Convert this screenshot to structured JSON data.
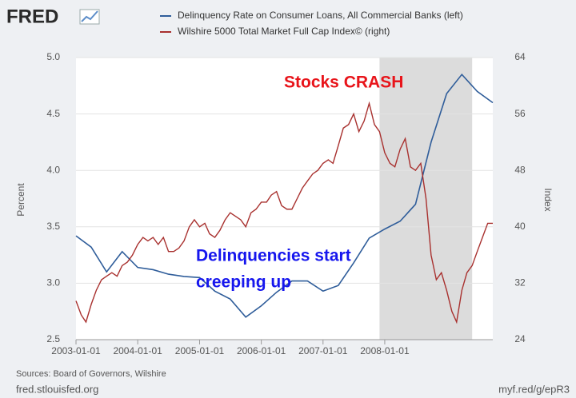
{
  "header": {
    "logo": "FRED"
  },
  "chart_data": {
    "type": "line",
    "series": [
      {
        "name": "Delinquency Rate on Consumer Loans, All Commercial Banks (left)",
        "color": "#2f5d9a",
        "axis": "y",
        "x": [
          "2003-01-01",
          "2003-04-01",
          "2003-07-01",
          "2003-10-01",
          "2004-01-01",
          "2004-04-01",
          "2004-07-01",
          "2004-10-01",
          "2005-01-01",
          "2005-04-01",
          "2005-07-01",
          "2005-10-01",
          "2006-01-01",
          "2006-04-01",
          "2006-07-01",
          "2006-10-01",
          "2007-01-01",
          "2007-04-01",
          "2007-07-01",
          "2007-10-01",
          "2008-01-01",
          "2008-04-01",
          "2008-07-01",
          "2008-10-01",
          "2009-01-01",
          "2009-04-01",
          "2009-07-01",
          "2009-10-01"
        ],
        "values": [
          3.42,
          3.32,
          3.1,
          3.28,
          3.14,
          3.12,
          3.08,
          3.06,
          3.05,
          2.93,
          2.86,
          2.7,
          2.8,
          2.92,
          3.02,
          3.02,
          2.93,
          2.98,
          3.18,
          3.4,
          3.48,
          3.55,
          3.7,
          4.25,
          4.68,
          4.85,
          4.7,
          4.6
        ]
      },
      {
        "name": "Wilshire 5000 Total Market Full Cap Index© (right)",
        "color": "#a8302e",
        "axis": "y2",
        "x": [
          "2003-01-01",
          "2003-02-01",
          "2003-03-01",
          "2003-04-01",
          "2003-05-01",
          "2003-06-01",
          "2003-07-01",
          "2003-08-01",
          "2003-09-01",
          "2003-10-01",
          "2003-11-01",
          "2003-12-01",
          "2004-01-01",
          "2004-02-01",
          "2004-03-01",
          "2004-04-01",
          "2004-05-01",
          "2004-06-01",
          "2004-07-01",
          "2004-08-01",
          "2004-09-01",
          "2004-10-01",
          "2004-11-01",
          "2004-12-01",
          "2005-01-01",
          "2005-02-01",
          "2005-03-01",
          "2005-04-01",
          "2005-05-01",
          "2005-06-01",
          "2005-07-01",
          "2005-08-01",
          "2005-09-01",
          "2005-10-01",
          "2005-11-01",
          "2005-12-01",
          "2006-01-01",
          "2006-02-01",
          "2006-03-01",
          "2006-04-01",
          "2006-05-01",
          "2006-06-01",
          "2006-07-01",
          "2006-08-01",
          "2006-09-01",
          "2006-10-01",
          "2006-11-01",
          "2006-12-01",
          "2007-01-01",
          "2007-02-01",
          "2007-03-01",
          "2007-04-01",
          "2007-05-01",
          "2007-06-01",
          "2007-07-01",
          "2007-08-01",
          "2007-09-01",
          "2007-10-01",
          "2007-11-01",
          "2007-12-01",
          "2008-01-01",
          "2008-02-01",
          "2008-03-01",
          "2008-04-01",
          "2008-05-01",
          "2008-06-01",
          "2008-07-01",
          "2008-08-01",
          "2008-09-01",
          "2008-10-01",
          "2008-11-01",
          "2008-12-01",
          "2009-01-01",
          "2009-02-01",
          "2009-03-01",
          "2009-04-01",
          "2009-05-01",
          "2009-06-01",
          "2009-07-01",
          "2009-08-01",
          "2009-09-01",
          "2009-10-01"
        ],
        "values": [
          29.5,
          27.5,
          26.5,
          29.0,
          31.0,
          32.5,
          33.0,
          33.5,
          33.0,
          34.5,
          35.0,
          36.0,
          37.5,
          38.5,
          38.0,
          38.5,
          37.5,
          38.5,
          36.5,
          36.5,
          37.0,
          38.0,
          40.0,
          41.0,
          40.0,
          40.5,
          39.0,
          38.5,
          39.5,
          41.0,
          42.0,
          41.5,
          41.0,
          40.0,
          42.0,
          42.5,
          43.5,
          43.5,
          44.5,
          45.0,
          43.0,
          42.5,
          42.5,
          44.0,
          45.5,
          46.5,
          47.5,
          48.0,
          49.0,
          49.5,
          49.0,
          51.5,
          54.0,
          54.5,
          56.0,
          53.5,
          55.0,
          57.5,
          54.5,
          53.5,
          50.5,
          49.0,
          48.5,
          51.0,
          52.5,
          48.5,
          48.0,
          49.0,
          44.0,
          36.0,
          32.5,
          33.5,
          31.0,
          28.0,
          26.5,
          31.0,
          33.5,
          34.5,
          36.5,
          38.5,
          40.5,
          40.5
        ]
      }
    ],
    "xlim": [
      "2003-01-01",
      "2009-10-01"
    ],
    "xticks": [
      "2003-01-01",
      "2004-01-01",
      "2005-01-01",
      "2006-01-01",
      "2007-01-01",
      "2008-01-01"
    ],
    "ylim": [
      2.5,
      5.0
    ],
    "yticks": [
      2.5,
      {
        "value": 3,
        "label": "3.0"
      },
      3.5,
      {
        "value": 4,
        "label": "4.0"
      },
      4.5,
      {
        "value": 5,
        "label": "5.0"
      }
    ],
    "y2lim": [
      24,
      64
    ],
    "y2ticks": [
      24,
      32,
      40,
      48,
      56,
      64
    ],
    "ylabel": "Percent",
    "y2label": "Index",
    "grid": true,
    "recessions": [
      {
        "start": "2007-12-01",
        "end": "2009-06-01"
      }
    ],
    "recession_color": "#dcdcdc",
    "annotations": [
      {
        "text": "Stocks CRASH",
        "color": "#e8141a"
      },
      {
        "text": "Delinquencies start",
        "color": "#1616ee"
      },
      {
        "text": "creeping up",
        "color": "#1616ee"
      }
    ]
  },
  "footer": {
    "sources": "Sources: Board of Governors, Wilshire",
    "site": "fred.stlouisfed.org",
    "link": "myf.red/g/epR3"
  }
}
